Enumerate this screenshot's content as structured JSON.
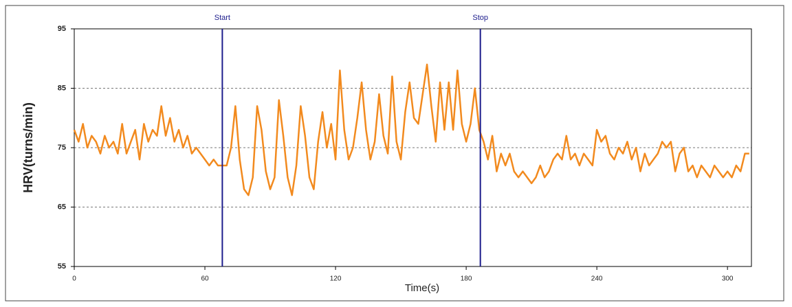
{
  "chart_data": {
    "type": "line",
    "x_label": "Time(s)",
    "y_label": "HRV(turns/min)",
    "x": [
      0,
      2,
      4,
      6,
      8,
      10,
      12,
      14,
      16,
      18,
      20,
      22,
      24,
      26,
      28,
      30,
      32,
      34,
      36,
      38,
      40,
      42,
      44,
      46,
      48,
      50,
      52,
      54,
      56,
      58,
      60,
      62,
      64,
      66,
      68,
      70,
      72,
      74,
      76,
      78,
      80,
      82,
      84,
      86,
      88,
      90,
      92,
      94,
      96,
      98,
      100,
      102,
      104,
      106,
      108,
      110,
      112,
      114,
      116,
      118,
      120,
      122,
      124,
      126,
      128,
      130,
      132,
      134,
      136,
      138,
      140,
      142,
      144,
      146,
      148,
      150,
      152,
      154,
      156,
      158,
      160,
      162,
      164,
      166,
      168,
      170,
      172,
      174,
      176,
      178,
      180,
      182,
      184,
      186,
      188,
      190,
      192,
      194,
      196,
      198,
      200,
      202,
      204,
      206,
      208,
      210,
      212,
      214,
      216,
      218,
      220,
      222,
      224,
      226,
      228,
      230,
      232,
      234,
      236,
      238,
      240,
      242,
      244,
      246,
      248,
      250,
      252,
      254,
      256,
      258,
      260,
      262,
      264,
      266,
      268,
      270,
      272,
      274,
      276,
      278,
      280,
      282,
      284,
      286,
      288,
      290,
      292,
      294,
      296,
      298,
      300,
      302,
      304,
      306,
      308,
      310
    ],
    "values": [
      78,
      76,
      79,
      75,
      77,
      76,
      74,
      77,
      75,
      76,
      74,
      79,
      74,
      76,
      78,
      73,
      79,
      76,
      78,
      77,
      82,
      77,
      80,
      76,
      78,
      75,
      77,
      74,
      75,
      74,
      73,
      72,
      73,
      72,
      72,
      72,
      75,
      82,
      73,
      68,
      67,
      70,
      82,
      78,
      71,
      68,
      70,
      83,
      77,
      70,
      67,
      72,
      82,
      77,
      70,
      68,
      76,
      81,
      75,
      79,
      73,
      88,
      78,
      73,
      75,
      80,
      86,
      78,
      73,
      76,
      84,
      77,
      74,
      87,
      76,
      73,
      81,
      86,
      80,
      79,
      84,
      89,
      82,
      76,
      86,
      78,
      86,
      78,
      88,
      79,
      76,
      79,
      85,
      78,
      76,
      73,
      77,
      71,
      74,
      72,
      74,
      71,
      70,
      71,
      70,
      69,
      70,
      72,
      70,
      71,
      73,
      74,
      73,
      77,
      73,
      74,
      72,
      74,
      73,
      72,
      78,
      76,
      77,
      74,
      73,
      75,
      74,
      76,
      73,
      75,
      71,
      74,
      72,
      73,
      74,
      76,
      75,
      76,
      71,
      74,
      75,
      71,
      72,
      70,
      72,
      71,
      70,
      72,
      71,
      70,
      71,
      70,
      72,
      71,
      74,
      74
    ],
    "color": "#f28a1e",
    "markers": [
      {
        "label": "Start",
        "x": 68
      },
      {
        "label": "Stop",
        "x": 186.5
      }
    ],
    "marker_color": "#1c1c8c",
    "xlim": [
      0,
      311
    ],
    "xticks": [
      0,
      60,
      120,
      180,
      240,
      300
    ],
    "ylim": [
      55,
      95
    ],
    "yticks": [
      55,
      65,
      75,
      85,
      95
    ],
    "grid": true
  }
}
